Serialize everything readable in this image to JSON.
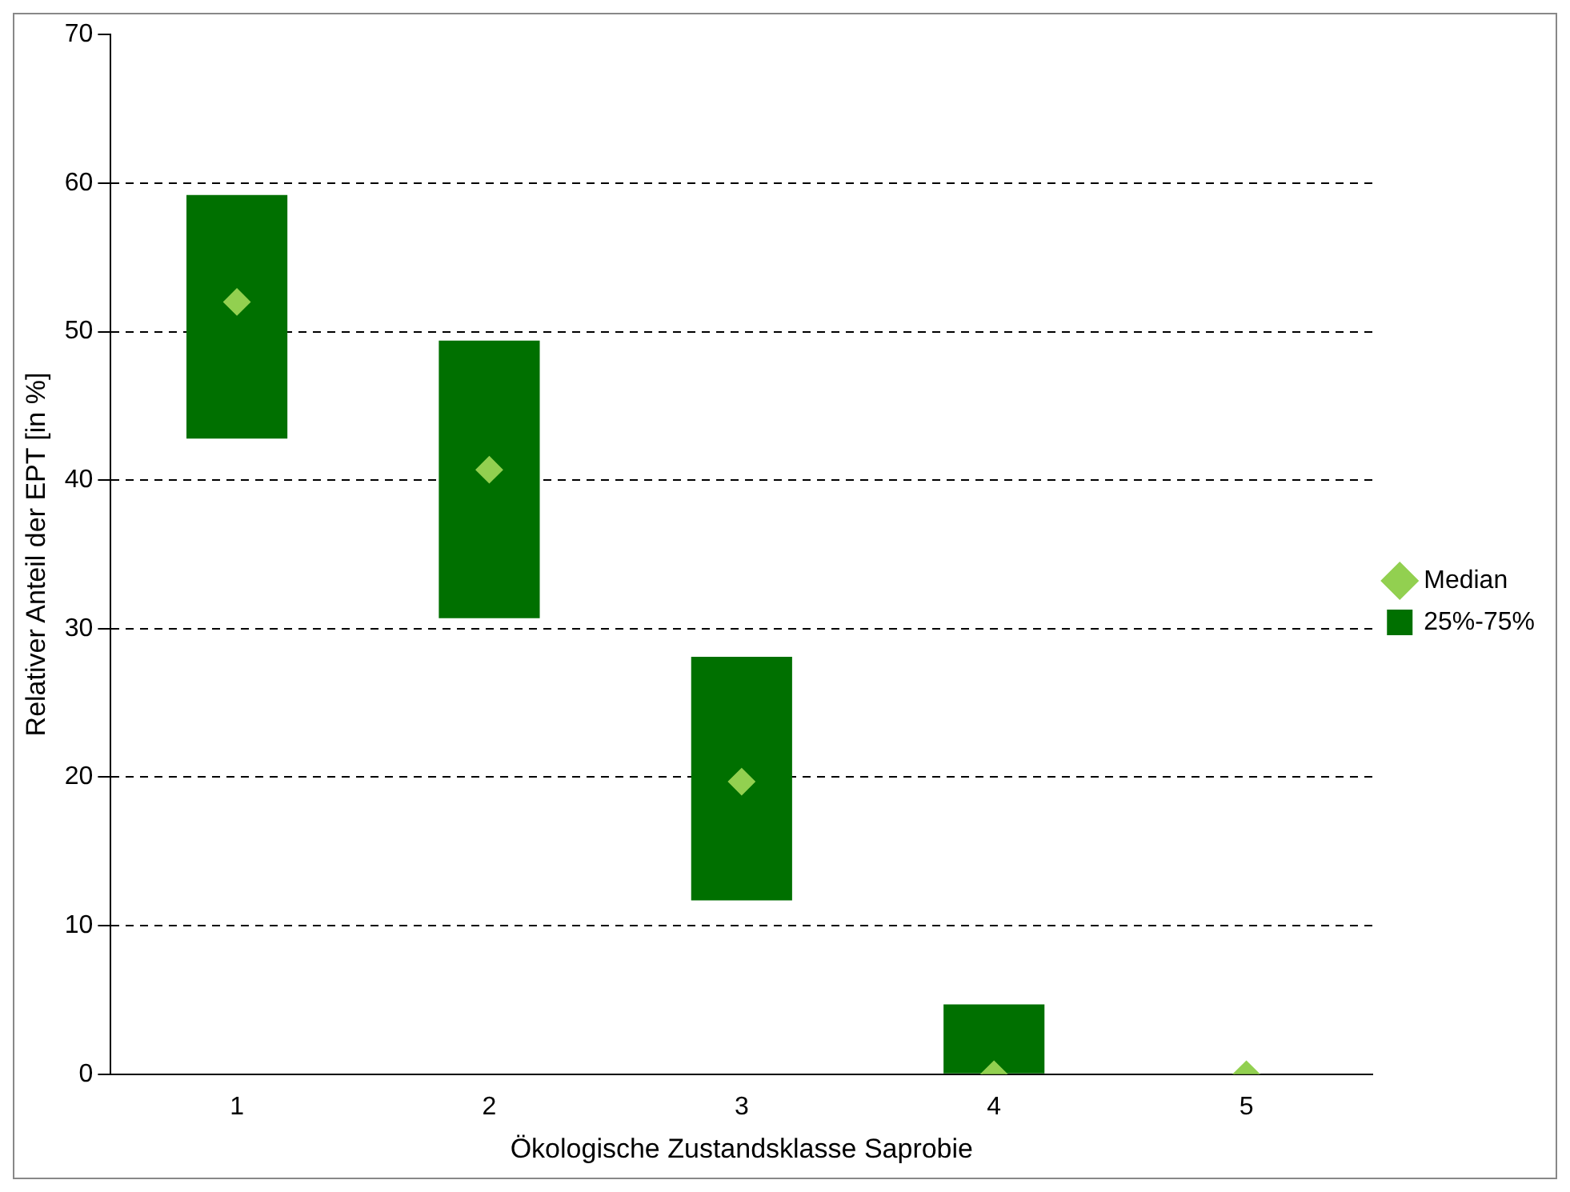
{
  "chart_data": {
    "type": "bar",
    "xlabel": "Ökologische Zustandsklasse Saprobie",
    "ylabel": "Relativer Anteil der EPT [in %]",
    "categories": [
      "1",
      "2",
      "3",
      "4",
      "5"
    ],
    "series": [
      {
        "name": "Median",
        "type": "scatter",
        "marker": "diamond",
        "color": "#92d050",
        "values": [
          52.0,
          40.7,
          19.7,
          0,
          0
        ]
      },
      {
        "name": "25%-75%",
        "color": "#007000",
        "base": [
          42.8,
          30.7,
          11.7,
          0,
          null
        ],
        "values": [
          16.4,
          18.7,
          16.4,
          4.7,
          null
        ]
      }
    ],
    "ylim": [
      0,
      70
    ],
    "yticks": [
      0,
      10,
      20,
      30,
      40,
      50,
      60,
      70
    ],
    "grid": "y",
    "legend": "right"
  }
}
